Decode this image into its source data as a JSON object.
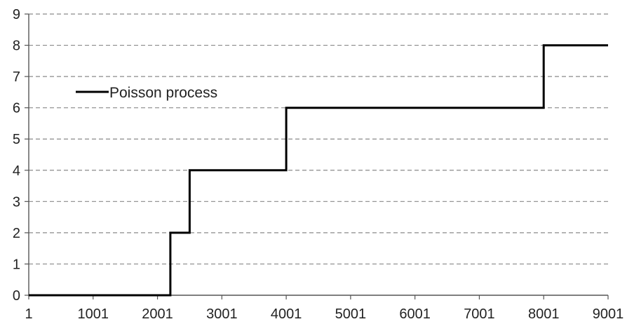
{
  "chart_data": {
    "type": "line",
    "title": "",
    "xlabel": "",
    "ylabel": "",
    "xlim": [
      1,
      9001
    ],
    "ylim": [
      0,
      9
    ],
    "x_ticks": [
      "1",
      "1001",
      "2001",
      "3001",
      "4001",
      "5001",
      "6001",
      "7001",
      "8001",
      "9001"
    ],
    "y_ticks": [
      "0",
      "1",
      "2",
      "3",
      "4",
      "5",
      "6",
      "7",
      "8",
      "9"
    ],
    "grid": {
      "horizontal": true,
      "style": "dashed"
    },
    "legend": {
      "position": "upper-left"
    },
    "series": [
      {
        "name": "Poisson process",
        "color": "#000000",
        "step": true,
        "points": [
          {
            "x": 1,
            "y": 0
          },
          {
            "x": 2201,
            "y": 0
          },
          {
            "x": 2201,
            "y": 2
          },
          {
            "x": 2501,
            "y": 2
          },
          {
            "x": 2501,
            "y": 4
          },
          {
            "x": 4001,
            "y": 4
          },
          {
            "x": 4001,
            "y": 6
          },
          {
            "x": 8001,
            "y": 6
          },
          {
            "x": 8001,
            "y": 8
          },
          {
            "x": 9001,
            "y": 8
          }
        ]
      }
    ]
  }
}
